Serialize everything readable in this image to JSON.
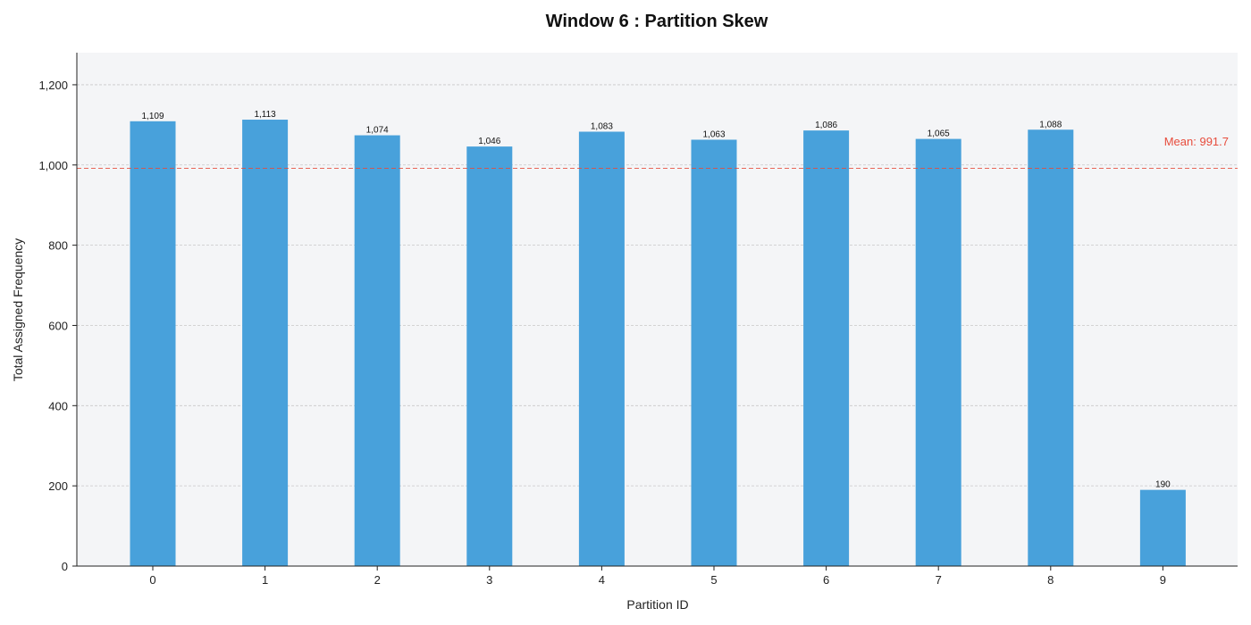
{
  "chart_data": {
    "type": "bar",
    "title": "Window 6 : Partition Skew",
    "xlabel": "Partition ID",
    "ylabel": "Total Assigned Frequency",
    "categories": [
      "0",
      "1",
      "2",
      "3",
      "4",
      "5",
      "6",
      "7",
      "8",
      "9"
    ],
    "values": [
      1109,
      1113,
      1074,
      1046,
      1083,
      1063,
      1086,
      1065,
      1088,
      190
    ],
    "value_labels": [
      "1,109",
      "1,113",
      "1,074",
      "1,046",
      "1,083",
      "1,063",
      "1,086",
      "1,065",
      "1,088",
      "190"
    ],
    "ylim": [
      0,
      1280
    ],
    "yticks": [
      0,
      200,
      400,
      600,
      800,
      1000,
      1200
    ],
    "ytick_labels": [
      "0",
      "200",
      "400",
      "600",
      "800",
      "1,000",
      "1,200"
    ],
    "grid": "horizontal-dashed",
    "mean": 991.7,
    "mean_label": "Mean: 991.7",
    "colors": {
      "bar": "#48a1db",
      "mean_line": "#e74c3c",
      "plot_background": "#f4f5f7",
      "grid": "#c8c8c8"
    }
  }
}
